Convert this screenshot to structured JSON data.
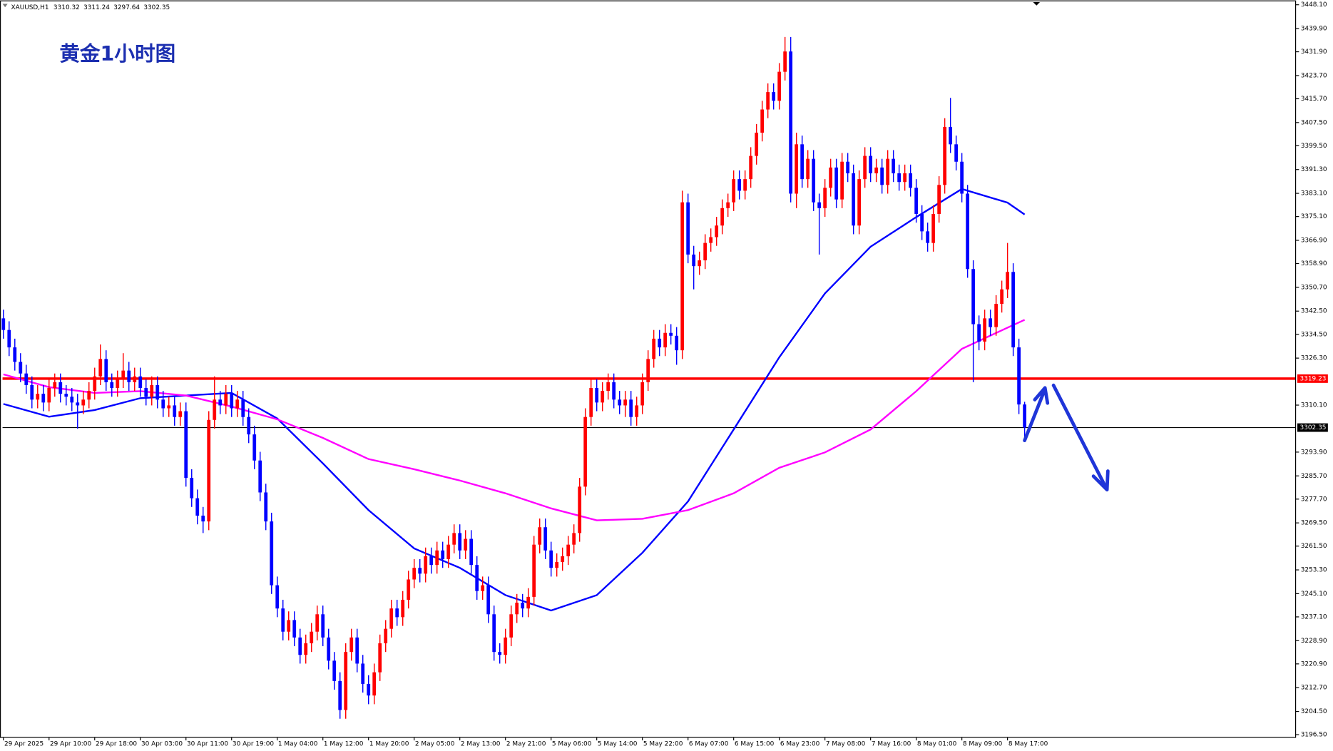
{
  "chart_data": {
    "type": "candlestick",
    "title": "黄金1小时图",
    "symbol": "XAUUSD,H1",
    "up_color": "#ff0000",
    "down_color": "#0000ff",
    "open": [
      3340,
      3336,
      3330,
      3325,
      3321,
      3317,
      3312,
      3314,
      3311,
      3316,
      3318,
      3314,
      3313,
      3311,
      3310,
      3312,
      3315,
      3320,
      3326,
      3318,
      3316,
      3319,
      3322,
      3318,
      3320,
      3316,
      3313,
      3317,
      3312,
      3309,
      3310,
      3306,
      3308,
      3285,
      3278,
      3272,
      3270,
      3305,
      3312,
      3310,
      3314,
      3309,
      3312,
      3306,
      3300,
      3291,
      3280,
      3270,
      3248,
      3240,
      3232,
      3236,
      3230,
      3224,
      3228,
      3232,
      3238,
      3230,
      3222,
      3215,
      3205,
      3225,
      3230,
      3221,
      3214,
      3210,
      3218,
      3228,
      3233,
      3240,
      3237,
      3243,
      3250,
      3254,
      3252,
      3258,
      3255,
      3260,
      3257,
      3262,
      3266,
      3260,
      3264,
      3255,
      3246,
      3248,
      3238,
      3225,
      3224,
      3230,
      3238,
      3242,
      3240,
      3244,
      3262,
      3268,
      3260,
      3254,
      3256,
      3258,
      3262,
      3266,
      3282,
      3306,
      3316,
      3311,
      3315,
      3318,
      3312,
      3310,
      3312,
      3306,
      3310,
      3318,
      3326,
      3333,
      3330,
      3335,
      3334,
      3329,
      3380,
      3362,
      3358,
      3360,
      3366,
      3368,
      3372,
      3378,
      3380,
      3388,
      3384,
      3388,
      3396,
      3404,
      3412,
      3418,
      3415,
      3425,
      3432,
      3383,
      3400,
      3388,
      3395,
      3380,
      3378,
      3385,
      3392,
      3381,
      3394,
      3390,
      3372,
      3388,
      3396,
      3390,
      3392,
      3386,
      3395,
      3390,
      3387,
      3390,
      3385,
      3376,
      3370,
      3366,
      3376,
      3386,
      3406,
      3400,
      3394,
      3383,
      3357,
      3338,
      3332,
      3340,
      3337,
      3345,
      3350,
      3356,
      3330,
      3310.32
    ],
    "high": [
      3343,
      3339,
      3333,
      3328,
      3324,
      3320,
      3317,
      3317,
      3319,
      3321,
      3321,
      3317,
      3316,
      3314,
      3315,
      3318,
      3323,
      3331,
      3329,
      3321,
      3322,
      3328,
      3325,
      3323,
      3323,
      3319,
      3320,
      3320,
      3315,
      3313,
      3313,
      3311,
      3311,
      3288,
      3281,
      3275,
      3308,
      3320,
      3315,
      3317,
      3317,
      3315,
      3315,
      3309,
      3303,
      3294,
      3283,
      3273,
      3251,
      3243,
      3239,
      3239,
      3233,
      3231,
      3235,
      3241,
      3241,
      3233,
      3225,
      3218,
      3228,
      3233,
      3233,
      3224,
      3217,
      3221,
      3231,
      3236,
      3243,
      3243,
      3246,
      3253,
      3257,
      3257,
      3261,
      3261,
      3263,
      3263,
      3265,
      3269,
      3269,
      3267,
      3267,
      3258,
      3251,
      3251,
      3241,
      3228,
      3233,
      3241,
      3245,
      3245,
      3247,
      3265,
      3271,
      3271,
      3263,
      3259,
      3261,
      3265,
      3269,
      3285,
      3309,
      3319,
      3319,
      3318,
      3321,
      3321,
      3315,
      3315,
      3315,
      3313,
      3321,
      3329,
      3336,
      3336,
      3338,
      3338,
      3337,
      3384,
      3383,
      3365,
      3363,
      3369,
      3371,
      3375,
      3381,
      3383,
      3391,
      3391,
      3391,
      3399,
      3407,
      3415,
      3421,
      3421,
      3428,
      3437,
      3437,
      3404,
      3403,
      3398,
      3398,
      3383,
      3388,
      3395,
      3395,
      3397,
      3397,
      3393,
      3391,
      3399,
      3399,
      3395,
      3395,
      3398,
      3398,
      3393,
      3393,
      3393,
      3388,
      3379,
      3373,
      3379,
      3389,
      3409,
      3416,
      3403,
      3397,
      3386,
      3360,
      3341,
      3343,
      3343,
      3348,
      3353,
      3366,
      3359,
      3333,
      3311.24
    ],
    "low": [
      3333,
      3327,
      3322,
      3318,
      3314,
      3309,
      3309,
      3308,
      3308,
      3313,
      3311,
      3310,
      3308,
      3302,
      3307,
      3309,
      3312,
      3317,
      3315,
      3313,
      3313,
      3316,
      3315,
      3315,
      3313,
      3310,
      3310,
      3309,
      3306,
      3306,
      3303,
      3303,
      3282,
      3275,
      3269,
      3266,
      3267,
      3302,
      3307,
      3307,
      3306,
      3306,
      3303,
      3297,
      3288,
      3277,
      3267,
      3245,
      3237,
      3229,
      3229,
      3227,
      3221,
      3221,
      3225,
      3229,
      3227,
      3219,
      3212,
      3202,
      3202,
      3222,
      3218,
      3211,
      3207,
      3207,
      3215,
      3225,
      3230,
      3234,
      3234,
      3240,
      3247,
      3249,
      3249,
      3252,
      3252,
      3254,
      3254,
      3259,
      3257,
      3257,
      3252,
      3243,
      3243,
      3235,
      3222,
      3221,
      3221,
      3227,
      3235,
      3237,
      3237,
      3241,
      3259,
      3257,
      3251,
      3251,
      3253,
      3255,
      3259,
      3263,
      3279,
      3303,
      3308,
      3308,
      3312,
      3309,
      3307,
      3306,
      3303,
      3303,
      3307,
      3315,
      3323,
      3327,
      3327,
      3331,
      3324,
      3326,
      3359,
      3350,
      3355,
      3357,
      3363,
      3365,
      3369,
      3375,
      3377,
      3381,
      3381,
      3385,
      3393,
      3401,
      3409,
      3412,
      3412,
      3422,
      3380,
      3378,
      3385,
      3385,
      3377,
      3362,
      3375,
      3382,
      3378,
      3378,
      3387,
      3369,
      3369,
      3385,
      3387,
      3387,
      3383,
      3383,
      3387,
      3384,
      3384,
      3382,
      3373,
      3367,
      3363,
      3363,
      3373,
      3383,
      3397,
      3391,
      3380,
      3354,
      3318,
      3329,
      3329,
      3334,
      3334,
      3342,
      3347,
      3327,
      3307,
      3297.64
    ],
    "close": [
      3336,
      3330,
      3325,
      3321,
      3317,
      3312,
      3314,
      3311,
      3316,
      3318,
      3314,
      3313,
      3311,
      3310,
      3312,
      3315,
      3320,
      3326,
      3318,
      3316,
      3319,
      3322,
      3318,
      3320,
      3316,
      3313,
      3317,
      3312,
      3309,
      3310,
      3306,
      3308,
      3285,
      3278,
      3272,
      3270,
      3305,
      3312,
      3310,
      3314,
      3309,
      3312,
      3306,
      3300,
      3291,
      3280,
      3270,
      3248,
      3240,
      3232,
      3236,
      3230,
      3224,
      3228,
      3232,
      3238,
      3230,
      3222,
      3215,
      3205,
      3225,
      3230,
      3221,
      3214,
      3210,
      3218,
      3228,
      3233,
      3240,
      3237,
      3243,
      3250,
      3254,
      3252,
      3258,
      3255,
      3260,
      3257,
      3262,
      3266,
      3260,
      3264,
      3255,
      3246,
      3248,
      3238,
      3225,
      3224,
      3230,
      3238,
      3242,
      3240,
      3244,
      3262,
      3268,
      3260,
      3254,
      3256,
      3258,
      3262,
      3266,
      3282,
      3306,
      3316,
      3311,
      3315,
      3318,
      3312,
      3310,
      3312,
      3306,
      3310,
      3318,
      3326,
      3333,
      3330,
      3335,
      3334,
      3329,
      3380,
      3362,
      3358,
      3360,
      3366,
      3368,
      3372,
      3378,
      3380,
      3388,
      3384,
      3388,
      3396,
      3404,
      3412,
      3418,
      3415,
      3425,
      3432,
      3383,
      3400,
      3388,
      3395,
      3380,
      3378,
      3385,
      3392,
      3381,
      3394,
      3390,
      3372,
      3388,
      3396,
      3390,
      3392,
      3386,
      3395,
      3390,
      3387,
      3390,
      3385,
      3376,
      3370,
      3366,
      3376,
      3386,
      3406,
      3400,
      3394,
      3383,
      3357,
      3338,
      3332,
      3340,
      3337,
      3345,
      3350,
      3356,
      3330,
      3310.32,
      3302.35
    ],
    "lines": [
      {
        "color": "#0000ff",
        "x": [
          0,
          8,
          16,
          24,
          32,
          40,
          48,
          56,
          64,
          72,
          80,
          88,
          96,
          104,
          112,
          120,
          128,
          136,
          144,
          152,
          160,
          168,
          176,
          179
        ],
        "values": [
          3310.5,
          3306.1,
          3308.4,
          3312.5,
          3313.4,
          3314.3,
          3305.5,
          3290.0,
          3273.9,
          3260.7,
          3254.0,
          3244.6,
          3239.3,
          3244.6,
          3259.2,
          3276.9,
          3301.7,
          3326.6,
          3348.6,
          3364.7,
          3374.9,
          3384.6,
          3379.9,
          3375.8
        ]
      },
      {
        "color": "#ff00ff",
        "x": [
          0,
          8,
          16,
          24,
          32,
          40,
          48,
          56,
          64,
          72,
          80,
          88,
          96,
          104,
          112,
          120,
          128,
          136,
          144,
          152,
          160,
          168,
          176,
          179
        ],
        "values": [
          3320.7,
          3316.3,
          3314.3,
          3314.9,
          3313.4,
          3309.6,
          3305.2,
          3298.8,
          3291.5,
          3288.0,
          3284.1,
          3279.7,
          3274.5,
          3270.4,
          3270.9,
          3273.9,
          3279.7,
          3288.5,
          3293.8,
          3301.7,
          3314.9,
          3329.5,
          3336.8,
          3339.5
        ]
      }
    ],
    "hlines": [
      {
        "value": 3319.23,
        "color": "#ff0000"
      },
      {
        "value": 3302.35,
        "color": "#000000"
      }
    ],
    "xlim": [
      -0.15,
      226.5
    ],
    "xticks": [
      {
        "value": 0,
        "label": "29 Apr 2025"
      },
      {
        "value": 8,
        "label": "29 Apr 10:00"
      },
      {
        "value": 16,
        "label": "29 Apr 18:00"
      },
      {
        "value": 24,
        "label": "30 Apr 03:00"
      },
      {
        "value": 32,
        "label": "30 Apr 11:00"
      },
      {
        "value": 40,
        "label": "30 Apr 19:00"
      },
      {
        "value": 48,
        "label": "1 May 04:00"
      },
      {
        "value": 56,
        "label": "1 May 12:00"
      },
      {
        "value": 64,
        "label": "1 May 20:00"
      },
      {
        "value": 72,
        "label": "2 May 05:00"
      },
      {
        "value": 80,
        "label": "2 May 13:00"
      },
      {
        "value": 88,
        "label": "2 May 21:00"
      },
      {
        "value": 96,
        "label": "5 May 06:00"
      },
      {
        "value": 104,
        "label": "5 May 14:00"
      },
      {
        "value": 112,
        "label": "5 May 22:00"
      },
      {
        "value": 120,
        "label": "6 May 07:00"
      },
      {
        "value": 128,
        "label": "6 May 15:00"
      },
      {
        "value": 136,
        "label": "6 May 23:00"
      },
      {
        "value": 144,
        "label": "7 May 08:00"
      },
      {
        "value": 152,
        "label": "7 May 16:00"
      },
      {
        "value": 160,
        "label": "8 May 01:00"
      },
      {
        "value": 168,
        "label": "8 May 09:00"
      },
      {
        "value": 176,
        "label": "8 May 17:00"
      }
    ],
    "ylim": [
      3195.7,
      3449.6
    ],
    "yticks": [
      {
        "value": 3448.1,
        "label": "3448.10"
      },
      {
        "value": 3439.9,
        "label": "3439.90"
      },
      {
        "value": 3431.9,
        "label": "3431.90"
      },
      {
        "value": 3423.7,
        "label": "3423.70"
      },
      {
        "value": 3415.7,
        "label": "3415.70"
      },
      {
        "value": 3407.5,
        "label": "3407.50"
      },
      {
        "value": 3399.5,
        "label": "3399.50"
      },
      {
        "value": 3391.3,
        "label": "3391.30"
      },
      {
        "value": 3383.1,
        "label": "3383.10"
      },
      {
        "value": 3375.1,
        "label": "3375.10"
      },
      {
        "value": 3366.9,
        "label": "3366.90"
      },
      {
        "value": 3358.9,
        "label": "3358.90"
      },
      {
        "value": 3350.7,
        "label": "3350.70"
      },
      {
        "value": 3342.5,
        "label": "3342.50"
      },
      {
        "value": 3334.5,
        "label": "3334.50"
      },
      {
        "value": 3326.3,
        "label": "3326.30"
      },
      {
        "value": 3310.1,
        "label": "3310.10"
      },
      {
        "value": 3293.9,
        "label": "3293.90"
      },
      {
        "value": 3285.7,
        "label": "3285.70"
      },
      {
        "value": 3277.7,
        "label": "3277.70"
      },
      {
        "value": 3269.5,
        "label": "3269.50"
      },
      {
        "value": 3261.5,
        "label": "3261.50"
      },
      {
        "value": 3253.3,
        "label": "3253.30"
      },
      {
        "value": 3245.1,
        "label": "3245.10"
      },
      {
        "value": 3237.1,
        "label": "3237.10"
      },
      {
        "value": 3228.9,
        "label": "3228.90"
      },
      {
        "value": 3220.9,
        "label": "3220.90"
      },
      {
        "value": 3212.7,
        "label": "3212.70"
      },
      {
        "value": 3204.5,
        "label": "3204.50"
      },
      {
        "value": 3196.5,
        "label": "3196.50"
      }
    ]
  }
}
